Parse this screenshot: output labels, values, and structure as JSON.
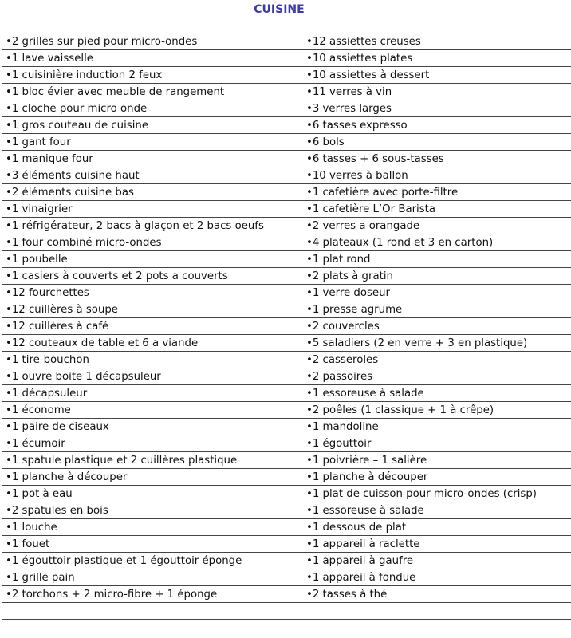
{
  "title": "CUISINE",
  "bullet": "•",
  "left": [
    "2 grilles sur pied pour micro-ondes",
    "1 lave vaisselle",
    "1 cuisinière induction 2 feux",
    "1 bloc évier avec meuble de rangement",
    "1 cloche pour micro onde",
    "1  gros couteau de cuisine",
    "1  gant four",
    "1  manique four",
    "3 éléments cuisine haut",
    "2 éléments cuisine bas",
    "1 vinaigrier",
    "1 réfrigérateur, 2 bacs à glaçon et 2 bacs oeufs",
    "1 four combiné micro-ondes",
    "1 poubelle",
    "1 casiers à couverts et 2 pots a couverts",
    "12 fourchettes",
    "12 cuillères à soupe",
    "12 cuillères à café",
    "12 couteaux de table et 6 a viande",
    "1 tire-bouchon",
    "1 ouvre boite 1 décapsuleur",
    "1 décapsuleur",
    "1 économe",
    "1 paire de ciseaux",
    "1 écumoir",
    "1  spatule plastique et 2 cuillères plastique",
    "1 planche à découper",
    "1 pot à eau",
    "2 spatules en bois",
    "1 louche",
    "1 fouet",
    "1 égouttoir plastique et 1 égouttoir éponge",
    "1 grille pain",
    "2 torchons + 2 micro-fibre + 1 éponge",
    ""
  ],
  "right": [
    "12 assiettes creuses",
    "10 assiettes plates",
    "10 assiettes à dessert",
    "11 verres à vin",
    "3 verres larges",
    "6 tasses expresso",
    "6 bols",
    "6 tasses + 6 sous-tasses",
    "10 verres à ballon",
    "1 cafetière avec porte-filtre",
    "1 cafetière L’Or Barista",
    "2 verres a orangade",
    "4 plateaux (1 rond et 3 en carton)",
    "1 plat rond",
    "2 plats à gratin",
    "1 verre doseur",
    "1 presse agrume",
    "2 couvercles",
    "5 saladiers (2 en verre + 3 en plastique)",
    "2 casseroles",
    "2 passoires",
    "1 essoreuse à salade",
    "2 poêles (1 classique + 1 à crêpe)",
    "1 mandoline",
    "1 égouttoir",
    "1 poivrière – 1 salière",
    "1 planche à découper",
    "1 plat de cuisson pour micro-ondes (crisp)",
    "1 essoreuse à salade",
    "1 dessous de plat",
    "1 appareil à raclette",
    "1 appareil à gaufre",
    "1 appareil à fondue",
    "2 tasses à thé",
    ""
  ]
}
